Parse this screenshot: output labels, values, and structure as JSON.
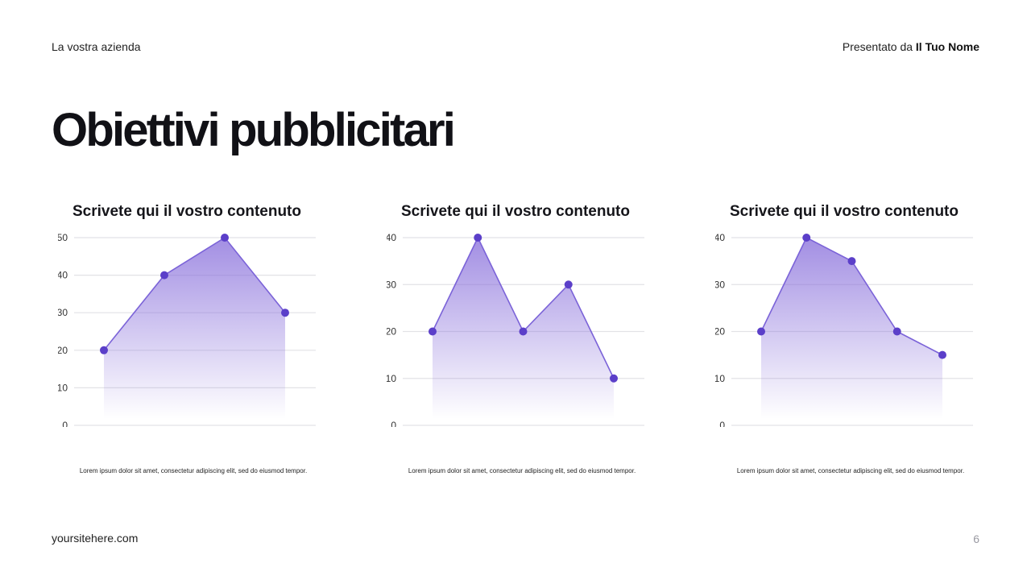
{
  "header": {
    "company": "La vostra azienda",
    "presented_prefix": "Presentato da ",
    "presenter": "Il Tuo Nome"
  },
  "title": "Obiettivi pubblicitari",
  "footer": {
    "website": "yoursitehere.com",
    "page_number": "6"
  },
  "colors": {
    "accent": "#5b3fc9",
    "line": "#7b63d8",
    "grid": "#e2e2e6"
  },
  "chart_data": [
    {
      "type": "area",
      "title": "Scrivete qui il vostro contenuto",
      "caption": "Lorem ipsum dolor sit amet, consectetur adipiscing elit, sed do eiusmod tempor.",
      "x": [
        1,
        2,
        3,
        4
      ],
      "values": [
        20,
        40,
        50,
        30
      ],
      "ylim": [
        0,
        50
      ],
      "yticks": [
        0,
        10,
        20,
        30,
        40,
        50
      ],
      "grid": true
    },
    {
      "type": "area",
      "title": "Scrivete qui il vostro contenuto",
      "caption": "Lorem ipsum dolor sit amet, consectetur adipiscing elit, sed do eiusmod tempor.",
      "x": [
        1,
        2,
        3,
        4,
        5
      ],
      "values": [
        20,
        40,
        20,
        30,
        10
      ],
      "ylim": [
        0,
        40
      ],
      "yticks": [
        0,
        10,
        20,
        30,
        40
      ],
      "grid": true
    },
    {
      "type": "area",
      "title": "Scrivete qui il vostro contenuto",
      "caption": "Lorem ipsum dolor sit amet, consectetur adipiscing elit, sed do eiusmod tempor.",
      "x": [
        1,
        2,
        3,
        4,
        5
      ],
      "values": [
        20,
        40,
        35,
        20,
        15
      ],
      "ylim": [
        0,
        40
      ],
      "yticks": [
        0,
        10,
        20,
        30,
        40
      ],
      "grid": true
    }
  ]
}
